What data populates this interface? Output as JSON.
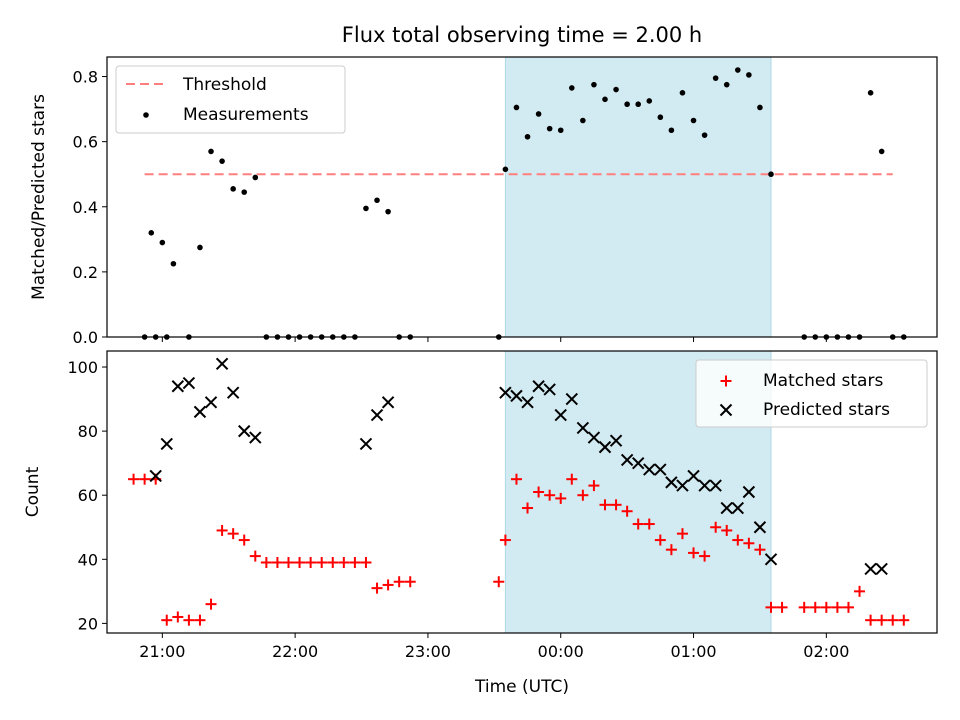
{
  "title": "Flux total observing time = 2.00 h",
  "colors": {
    "threshold": "#ff7f7f",
    "span": "#add8e6",
    "measurement": "#000000",
    "matched": "#ff0000",
    "predicted": "#000000"
  },
  "chart_data": [
    {
      "type": "scatter",
      "ylabel": "Matched/Predicted stars",
      "xlim": [
        "20:35",
        "02:50"
      ],
      "ylim": [
        0,
        0.86
      ],
      "yticks": [
        "0.0",
        "0.2",
        "0.4",
        "0.6",
        "0.8"
      ],
      "xticks": [
        "21:00",
        "22:00",
        "23:00",
        "00:00",
        "01:00",
        "02:00"
      ],
      "shaded_span": {
        "start": "23:35",
        "end": "01:35"
      },
      "legend_position": "upper left",
      "threshold": {
        "name": "Threshold",
        "value": 0.5,
        "x_range": [
          "20:52",
          "02:30"
        ],
        "style": "dashed"
      },
      "series": [
        {
          "name": "Measurements",
          "x": [
            "20:52",
            "20:57",
            "21:02",
            "20:55",
            "21:00",
            "21:05",
            "21:12",
            "21:17",
            "21:22",
            "21:27",
            "21:32",
            "21:37",
            "21:42",
            "21:47",
            "21:52",
            "21:57",
            "22:02",
            "22:07",
            "22:12",
            "22:17",
            "22:22",
            "22:27",
            "22:32",
            "22:37",
            "22:42",
            "22:47",
            "22:52",
            "23:32",
            "23:35",
            "23:40",
            "23:45",
            "23:50",
            "23:55",
            "00:00",
            "00:05",
            "00:10",
            "00:15",
            "00:20",
            "00:25",
            "00:30",
            "00:35",
            "00:40",
            "00:45",
            "00:50",
            "00:55",
            "01:00",
            "01:05",
            "01:10",
            "01:15",
            "01:20",
            "01:25",
            "01:30",
            "01:35",
            "01:50",
            "01:55",
            "02:00",
            "02:05",
            "02:10",
            "02:15",
            "02:20",
            "02:25",
            "02:30",
            "02:35"
          ],
          "y": [
            0,
            0,
            0,
            0.32,
            0.29,
            0.225,
            0,
            0.275,
            0.57,
            0.54,
            0.455,
            0.445,
            0.49,
            0,
            0,
            0,
            0,
            0,
            0,
            0,
            0,
            0,
            0.395,
            0.42,
            0.385,
            0,
            0,
            0,
            0.515,
            0.705,
            0.615,
            0.685,
            0.64,
            0.635,
            0.765,
            0.665,
            0.775,
            0.73,
            0.76,
            0.715,
            0.715,
            0.725,
            0.675,
            0.635,
            0.75,
            0.665,
            0.62,
            0.795,
            0.775,
            0.82,
            0.805,
            0.705,
            0.5,
            0,
            0,
            0,
            0,
            0,
            0,
            0.75,
            0.57,
            0,
            0
          ]
        }
      ]
    },
    {
      "type": "scatter",
      "ylabel": "Count",
      "xlabel": "Time (UTC)",
      "xlim": [
        "20:35",
        "02:50"
      ],
      "ylim": [
        17,
        105
      ],
      "yticks": [
        "20",
        "40",
        "60",
        "80",
        "100"
      ],
      "xticks": [
        "21:00",
        "22:00",
        "23:00",
        "00:00",
        "01:00",
        "02:00"
      ],
      "shaded_span": {
        "start": "23:35",
        "end": "01:35"
      },
      "legend_position": "upper right",
      "series": [
        {
          "name": "Matched stars",
          "marker": "+",
          "x": [
            "20:47",
            "20:52",
            "20:57",
            "21:02",
            "21:07",
            "21:12",
            "21:17",
            "21:22",
            "21:27",
            "21:32",
            "21:37",
            "21:42",
            "21:47",
            "21:52",
            "21:57",
            "22:02",
            "22:07",
            "22:12",
            "22:17",
            "22:22",
            "22:27",
            "22:32",
            "22:37",
            "22:42",
            "22:47",
            "22:52",
            "23:32",
            "23:35",
            "23:40",
            "23:45",
            "23:50",
            "23:55",
            "00:00",
            "00:05",
            "00:10",
            "00:15",
            "00:20",
            "00:25",
            "00:30",
            "00:35",
            "00:40",
            "00:45",
            "00:50",
            "00:55",
            "01:00",
            "01:05",
            "01:10",
            "01:15",
            "01:20",
            "01:25",
            "01:30",
            "01:35",
            "01:40",
            "01:50",
            "01:55",
            "02:00",
            "02:05",
            "02:10",
            "02:15",
            "02:20",
            "02:25",
            "02:30",
            "02:35"
          ],
          "y": [
            65,
            65,
            65,
            21,
            22,
            21,
            21,
            26,
            49,
            48,
            46,
            41,
            39,
            39,
            39,
            39,
            39,
            39,
            39,
            39,
            39,
            39,
            31,
            32,
            33,
            33,
            33,
            46,
            65,
            56,
            61,
            60,
            59,
            65,
            60,
            63,
            57,
            57,
            55,
            51,
            51,
            46,
            43,
            48,
            42,
            41,
            50,
            49,
            46,
            45,
            43,
            25,
            25,
            25,
            25,
            25,
            25,
            25,
            30,
            21,
            21,
            21,
            21
          ]
        },
        {
          "name": "Predicted stars",
          "marker": "x",
          "x": [
            "20:57",
            "21:02",
            "21:07",
            "21:12",
            "21:17",
            "21:22",
            "21:27",
            "21:32",
            "21:37",
            "21:42",
            "22:32",
            "22:37",
            "22:42",
            "23:35",
            "23:40",
            "23:45",
            "23:50",
            "23:55",
            "00:00",
            "00:05",
            "00:10",
            "00:15",
            "00:20",
            "00:25",
            "00:30",
            "00:35",
            "00:40",
            "00:45",
            "00:50",
            "00:55",
            "01:00",
            "01:05",
            "01:10",
            "01:15",
            "01:20",
            "01:25",
            "01:30",
            "01:35",
            "02:20",
            "02:25"
          ],
          "y": [
            66,
            76,
            94,
            95,
            86,
            89,
            101,
            92,
            80,
            78,
            76,
            85,
            89,
            92,
            91,
            89,
            94,
            93,
            85,
            90,
            81,
            78,
            75,
            77,
            71,
            70,
            68,
            68,
            64,
            63,
            66,
            63,
            63,
            56,
            56,
            61,
            50,
            40,
            37,
            37
          ]
        }
      ]
    }
  ]
}
